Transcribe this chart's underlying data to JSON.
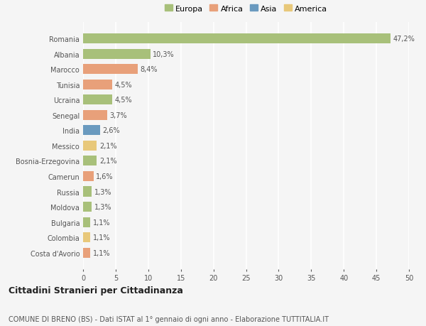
{
  "countries": [
    "Romania",
    "Albania",
    "Marocco",
    "Tunisia",
    "Ucraina",
    "Senegal",
    "India",
    "Messico",
    "Bosnia-Erzegovina",
    "Camerun",
    "Russia",
    "Moldova",
    "Bulgaria",
    "Colombia",
    "Costa d'Avorio"
  ],
  "values": [
    47.2,
    10.3,
    8.4,
    4.5,
    4.5,
    3.7,
    2.6,
    2.1,
    2.1,
    1.6,
    1.3,
    1.3,
    1.1,
    1.1,
    1.1
  ],
  "labels": [
    "47,2%",
    "10,3%",
    "8,4%",
    "4,5%",
    "4,5%",
    "3,7%",
    "2,6%",
    "2,1%",
    "2,1%",
    "1,6%",
    "1,3%",
    "1,3%",
    "1,1%",
    "1,1%",
    "1,1%"
  ],
  "colors": [
    "#a8c07a",
    "#a8c07a",
    "#e8a07a",
    "#e8a07a",
    "#a8c07a",
    "#e8a07a",
    "#6a9abf",
    "#e8c87a",
    "#a8c07a",
    "#e8a07a",
    "#a8c07a",
    "#a8c07a",
    "#a8c07a",
    "#e8c87a",
    "#e8a07a"
  ],
  "legend": {
    "Europa": "#a8c07a",
    "Africa": "#e8a07a",
    "Asia": "#6a9abf",
    "America": "#e8c87a"
  },
  "title": "Cittadini Stranieri per Cittadinanza",
  "subtitle": "COMUNE DI BRENO (BS) - Dati ISTAT al 1° gennaio di ogni anno - Elaborazione TUTTITALIA.IT",
  "xlim": [
    0,
    50
  ],
  "xticks": [
    0,
    5,
    10,
    15,
    20,
    25,
    30,
    35,
    40,
    45,
    50
  ],
  "background_color": "#f5f5f5",
  "grid_color": "#ffffff",
  "bar_height": 0.65,
  "title_fontsize": 9,
  "subtitle_fontsize": 7,
  "tick_fontsize": 7,
  "label_fontsize": 7,
  "legend_fontsize": 8
}
